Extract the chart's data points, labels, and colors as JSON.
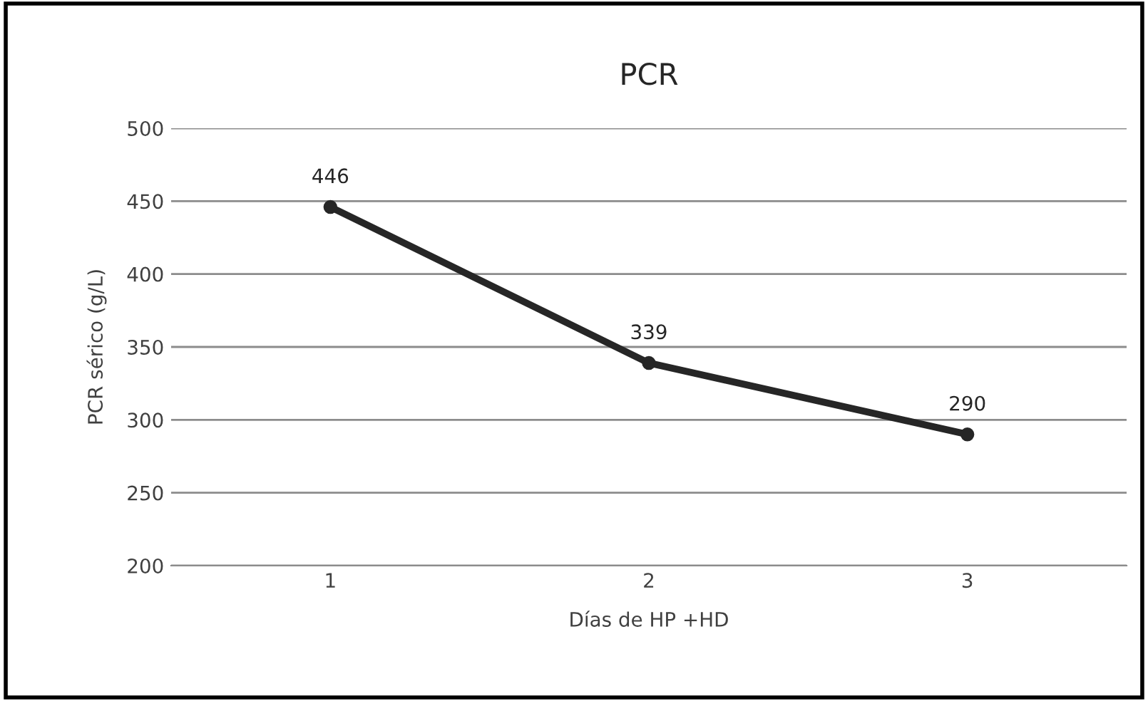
{
  "chart_data": {
    "type": "line",
    "title": "PCR",
    "xlabel": "Días de HP +HD",
    "ylabel": "PCR sérico (g/L)",
    "categories": [
      "1",
      "2",
      "3"
    ],
    "series": [
      {
        "color": "#262626",
        "values": [
          446,
          339,
          290
        ]
      }
    ],
    "ylim": [
      200,
      500
    ],
    "yticks": [
      200,
      250,
      300,
      350,
      400,
      450,
      500
    ],
    "grid": "y",
    "data_labels": true,
    "marker": "circle",
    "line_style": "solid",
    "legend": false
  }
}
